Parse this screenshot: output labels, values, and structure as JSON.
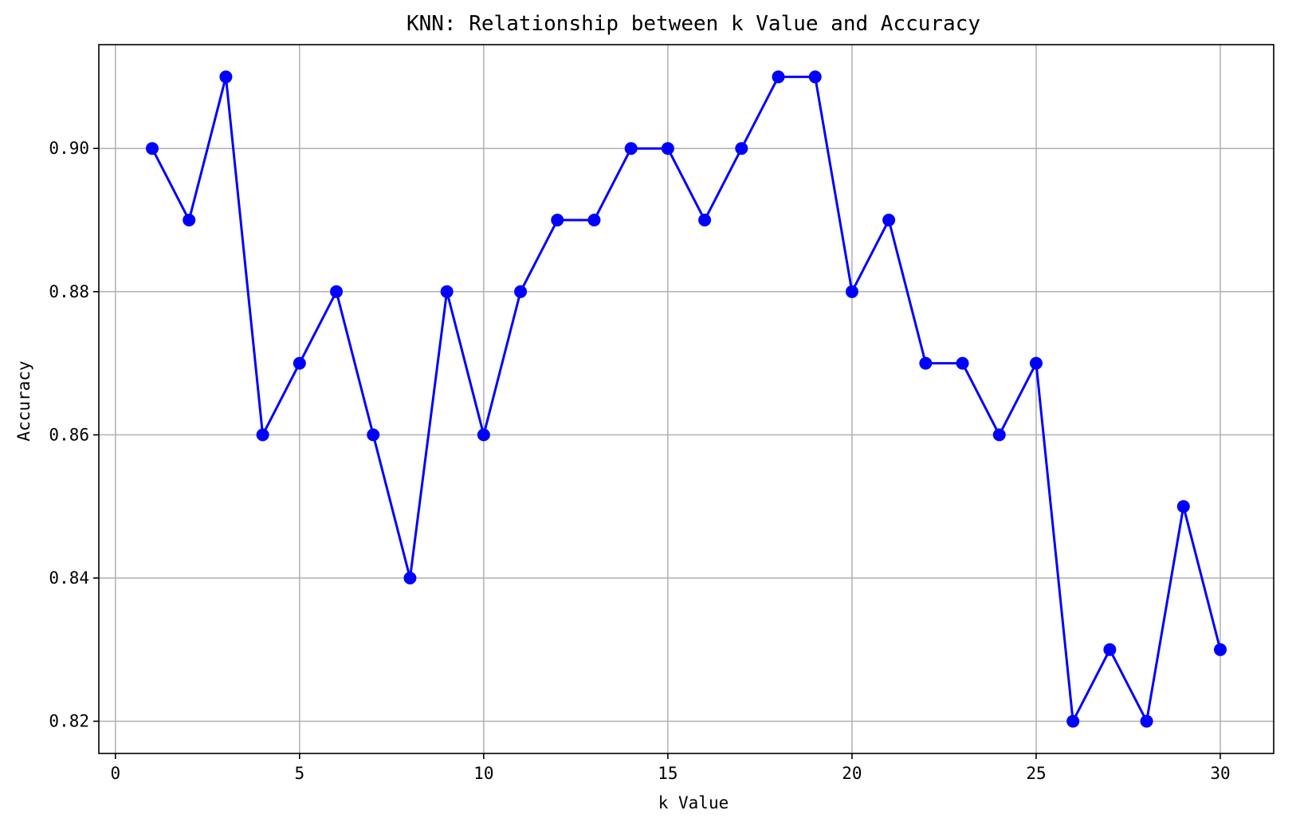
{
  "chart_data": {
    "type": "line",
    "title": "KNN: Relationship between k Value and Accuracy",
    "xlabel": "k Value",
    "ylabel": "Accuracy",
    "xlim": [
      -0.45,
      31.45
    ],
    "ylim": [
      0.8155,
      0.9145
    ],
    "xticks": [
      0,
      5,
      10,
      15,
      20,
      25,
      30
    ],
    "xtick_labels": [
      "0",
      "5",
      "10",
      "15",
      "20",
      "25",
      "30"
    ],
    "yticks": [
      0.82,
      0.84,
      0.86,
      0.88,
      0.9
    ],
    "ytick_labels": [
      "0.82",
      "0.84",
      "0.86",
      "0.88",
      "0.90"
    ],
    "grid": true,
    "series": [
      {
        "marker": "circle",
        "color": "#0000ff",
        "x": [
          1,
          2,
          3,
          4,
          5,
          6,
          7,
          8,
          9,
          10,
          11,
          12,
          13,
          14,
          15,
          16,
          17,
          18,
          19,
          20,
          21,
          22,
          23,
          24,
          25,
          26,
          27,
          28,
          29,
          30
        ],
        "values": [
          0.9,
          0.89,
          0.91,
          0.86,
          0.87,
          0.88,
          0.86,
          0.84,
          0.88,
          0.86,
          0.88,
          0.89,
          0.89,
          0.9,
          0.9,
          0.89,
          0.9,
          0.91,
          0.91,
          0.88,
          0.89,
          0.87,
          0.87,
          0.86,
          0.87,
          0.82,
          0.83,
          0.82,
          0.85,
          0.83
        ]
      }
    ]
  }
}
